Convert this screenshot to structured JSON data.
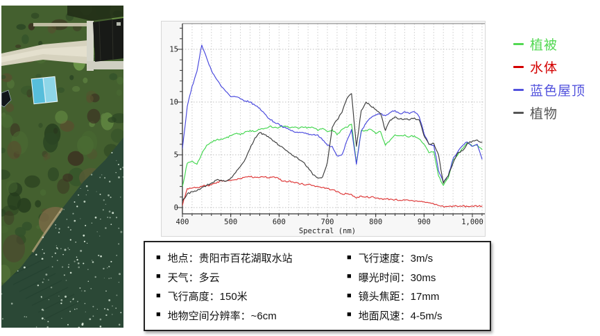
{
  "chart_data": {
    "type": "line",
    "title": "",
    "xlabel": "Spectral (nm)",
    "ylabel": "",
    "x_ticks": [
      400,
      500,
      600,
      700,
      800,
      900,
      1000
    ],
    "x_tick_labels": [
      "400",
      "500",
      "600",
      "700",
      "800",
      "900",
      "1,000"
    ],
    "y_ticks": [
      0,
      5,
      10,
      15
    ],
    "xlim": [
      400,
      1028
    ],
    "ylim": [
      0,
      17.6
    ],
    "grid": true,
    "legend_position": "right-outside",
    "x": [
      400,
      410,
      420,
      430,
      440,
      450,
      460,
      470,
      480,
      490,
      500,
      510,
      520,
      530,
      540,
      550,
      560,
      570,
      580,
      590,
      600,
      610,
      620,
      630,
      640,
      650,
      660,
      670,
      680,
      690,
      700,
      710,
      720,
      730,
      740,
      750,
      760,
      770,
      780,
      790,
      800,
      810,
      820,
      830,
      840,
      850,
      860,
      870,
      880,
      890,
      900,
      910,
      920,
      930,
      940,
      950,
      960,
      970,
      980,
      990,
      1000,
      1010,
      1020
    ],
    "series": [
      {
        "name": "植被",
        "color": "#41d64d",
        "values": [
          2.0,
          4.2,
          4.4,
          4.1,
          5.1,
          5.9,
          6.2,
          6.4,
          6.5,
          6.6,
          6.8,
          7.0,
          6.9,
          7.2,
          7.3,
          7.2,
          7.4,
          7.5,
          7.7,
          7.6,
          7.6,
          7.7,
          7.6,
          7.6,
          7.5,
          7.6,
          7.6,
          7.6,
          7.3,
          7.5,
          7.2,
          7.4,
          6.9,
          7.4,
          7.6,
          7.9,
          4.2,
          7.3,
          7.3,
          7.4,
          7.0,
          7.2,
          5.9,
          6.4,
          6.9,
          6.8,
          6.9,
          6.7,
          6.8,
          6.5,
          6.0,
          5.2,
          5.3,
          3.0,
          2.1,
          2.8,
          4.5,
          5.0,
          5.6,
          6.2,
          5.8,
          5.9,
          5.5
        ]
      },
      {
        "name": "水体",
        "color": "#dd3333",
        "values": [
          0.2,
          1.8,
          1.85,
          1.9,
          2.0,
          2.1,
          2.15,
          2.3,
          2.55,
          2.5,
          2.55,
          2.65,
          2.75,
          2.9,
          2.9,
          2.9,
          2.85,
          2.9,
          2.8,
          2.9,
          2.7,
          2.5,
          2.5,
          2.4,
          2.3,
          2.2,
          2.2,
          2.1,
          2.0,
          1.9,
          1.8,
          1.7,
          1.5,
          1.3,
          1.3,
          1.25,
          0.9,
          1.1,
          1.0,
          1.0,
          0.9,
          0.85,
          0.8,
          0.8,
          0.75,
          0.7,
          0.7,
          0.65,
          0.6,
          0.6,
          0.55,
          0.45,
          0.35,
          0.2,
          0.1,
          0.1,
          0.15,
          0.1,
          0.15,
          0.1,
          0.15,
          0.1,
          0.15
        ]
      },
      {
        "name": "蓝色屋顶",
        "color": "#4646dd",
        "values": [
          5.6,
          9.6,
          11.5,
          12.9,
          15.4,
          14.2,
          13.0,
          12.2,
          11.5,
          11.0,
          10.5,
          10.5,
          10.3,
          10.1,
          10.0,
          9.7,
          9.4,
          8.9,
          8.4,
          8.1,
          7.9,
          7.6,
          7.4,
          7.2,
          7.1,
          7.1,
          7.0,
          6.9,
          6.9,
          6.4,
          5.9,
          5.8,
          4.9,
          5.0,
          6.3,
          7.4,
          4.1,
          7.2,
          8.0,
          8.5,
          8.8,
          8.9,
          8.7,
          9.0,
          9.2,
          8.9,
          9.1,
          8.9,
          9.1,
          8.6,
          7.0,
          6.0,
          5.9,
          3.5,
          2.4,
          3.0,
          4.6,
          5.3,
          5.9,
          6.2,
          5.8,
          6.0,
          4.6
        ]
      },
      {
        "name": "植物",
        "color": "#3a3a3a",
        "values": [
          0.6,
          1.3,
          1.5,
          1.6,
          1.9,
          2.1,
          2.3,
          2.6,
          2.6,
          2.5,
          2.8,
          3.3,
          3.9,
          4.6,
          5.6,
          6.6,
          7.1,
          6.9,
          6.6,
          6.3,
          5.9,
          5.6,
          5.2,
          4.9,
          4.6,
          4.3,
          3.8,
          3.1,
          2.8,
          2.9,
          4.3,
          7.6,
          8.3,
          9.0,
          10.3,
          10.8,
          5.8,
          9.2,
          10.0,
          9.6,
          9.3,
          8.9,
          7.3,
          8.3,
          8.6,
          8.4,
          8.4,
          8.3,
          8.5,
          8.3,
          6.8,
          6.0,
          6.1,
          5.0,
          2.3,
          3.0,
          4.2,
          5.2,
          5.4,
          6.1,
          6.3,
          6.4,
          6.2
        ]
      }
    ]
  },
  "legend": {
    "items": [
      {
        "label": "植被",
        "color": "#52d852"
      },
      {
        "label": "水体",
        "color": "#d40000"
      },
      {
        "label": "蓝色屋顶",
        "color": "#5252dd"
      },
      {
        "label": "植物",
        "color": "#555555"
      }
    ]
  },
  "info_box": {
    "bullet": "■",
    "left": [
      "地点：贵阳市百花湖取水站",
      "天气：多云",
      "飞行高度：150米",
      "地物空间分辨率：~6cm"
    ],
    "right": [
      "飞行速度：3m/s",
      "曝光时间：30ms",
      "镜头焦距：17mm",
      "地面风速：4-5m/s"
    ]
  }
}
